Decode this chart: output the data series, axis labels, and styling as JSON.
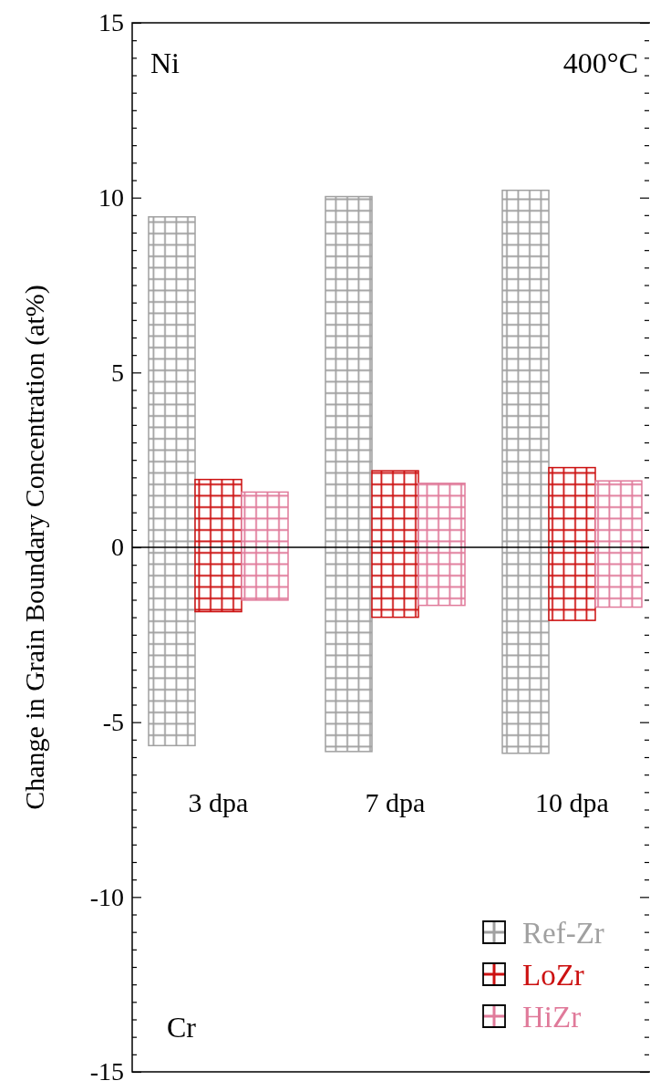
{
  "chart_data": {
    "type": "bar",
    "ylabel": "Change in Grain Boundary Concentration (at%)",
    "categories": [
      "3 dpa",
      "7 dpa",
      "10 dpa"
    ],
    "series": [
      {
        "name": "Ref-Zr",
        "color": "#a0a0a0",
        "base": [
          -5.67,
          -5.84,
          -5.89
        ],
        "values": [
          15.12,
          15.87,
          16.1
        ]
      },
      {
        "name": "LoZr",
        "color": "#cc1111",
        "base": [
          -1.84,
          -2.0,
          -2.09
        ],
        "values": [
          3.78,
          4.19,
          4.37
        ]
      },
      {
        "name": "HiZr",
        "color": "#e07a9a",
        "base": [
          -1.51,
          -1.66,
          -1.71
        ],
        "values": [
          3.09,
          3.49,
          3.61
        ]
      }
    ],
    "ylim": [
      -15,
      15
    ],
    "yticks": [
      -15,
      {
        "value": -14.5,
        "label": null
      },
      {
        "value": -14,
        "label": null
      },
      {
        "value": -13.5,
        "label": null
      },
      {
        "value": -13,
        "label": null
      },
      {
        "value": -12.5,
        "label": null
      },
      {
        "value": -12,
        "label": null
      },
      {
        "value": -11.5,
        "label": null
      },
      {
        "value": -11,
        "label": null
      },
      {
        "value": -10.5,
        "label": null
      },
      -10,
      {
        "value": -9.5,
        "label": null
      },
      {
        "value": -9,
        "label": null
      },
      {
        "value": -8.5,
        "label": null
      },
      {
        "value": -8,
        "label": null
      },
      {
        "value": -7.5,
        "label": null
      },
      {
        "value": -7,
        "label": null
      },
      {
        "value": -6.5,
        "label": null
      },
      {
        "value": -6,
        "label": null
      },
      {
        "value": -5.5,
        "label": null
      },
      -5,
      {
        "value": -4.5,
        "label": null
      },
      {
        "value": -4,
        "label": null
      },
      {
        "value": -3.5,
        "label": null
      },
      {
        "value": -3,
        "label": null
      },
      {
        "value": -2.5,
        "label": null
      },
      {
        "value": -2,
        "label": null
      },
      {
        "value": -1.5,
        "label": null
      },
      {
        "value": -1,
        "label": null
      },
      {
        "value": -0.5,
        "label": null
      },
      0,
      {
        "value": 0.5,
        "label": null
      },
      {
        "value": 1,
        "label": null
      },
      {
        "value": 1.5,
        "label": null
      },
      {
        "value": 2,
        "label": null
      },
      {
        "value": 2.5,
        "label": null
      },
      {
        "value": 3,
        "label": null
      },
      {
        "value": 3.5,
        "label": null
      },
      {
        "value": 4,
        "label": null
      },
      {
        "value": 4.5,
        "label": null
      },
      5,
      {
        "value": 5.5,
        "label": null
      },
      {
        "value": 6,
        "label": null
      },
      {
        "value": 6.5,
        "label": null
      },
      {
        "value": 7,
        "label": null
      },
      {
        "value": 7.5,
        "label": null
      },
      {
        "value": 8,
        "label": null
      },
      {
        "value": 8.5,
        "label": null
      },
      {
        "value": 9,
        "label": null
      },
      {
        "value": 9.5,
        "label": null
      },
      10,
      {
        "value": 10.5,
        "label": null
      },
      {
        "value": 11,
        "label": null
      },
      {
        "value": 11.5,
        "label": null
      },
      {
        "value": 12,
        "label": null
      },
      {
        "value": 12.5,
        "label": null
      },
      {
        "value": 13,
        "label": null
      },
      {
        "value": 13.5,
        "label": null
      },
      {
        "value": 14,
        "label": null
      },
      {
        "value": 14.5,
        "label": null
      },
      15
    ],
    "ref_lines": [
      {
        "axis": "y",
        "value": 0,
        "label": null,
        "color": "#000000"
      }
    ],
    "annotations": [
      "Ni",
      "400°C",
      "Cr"
    ],
    "legend": "bottom right",
    "grid": false
  }
}
